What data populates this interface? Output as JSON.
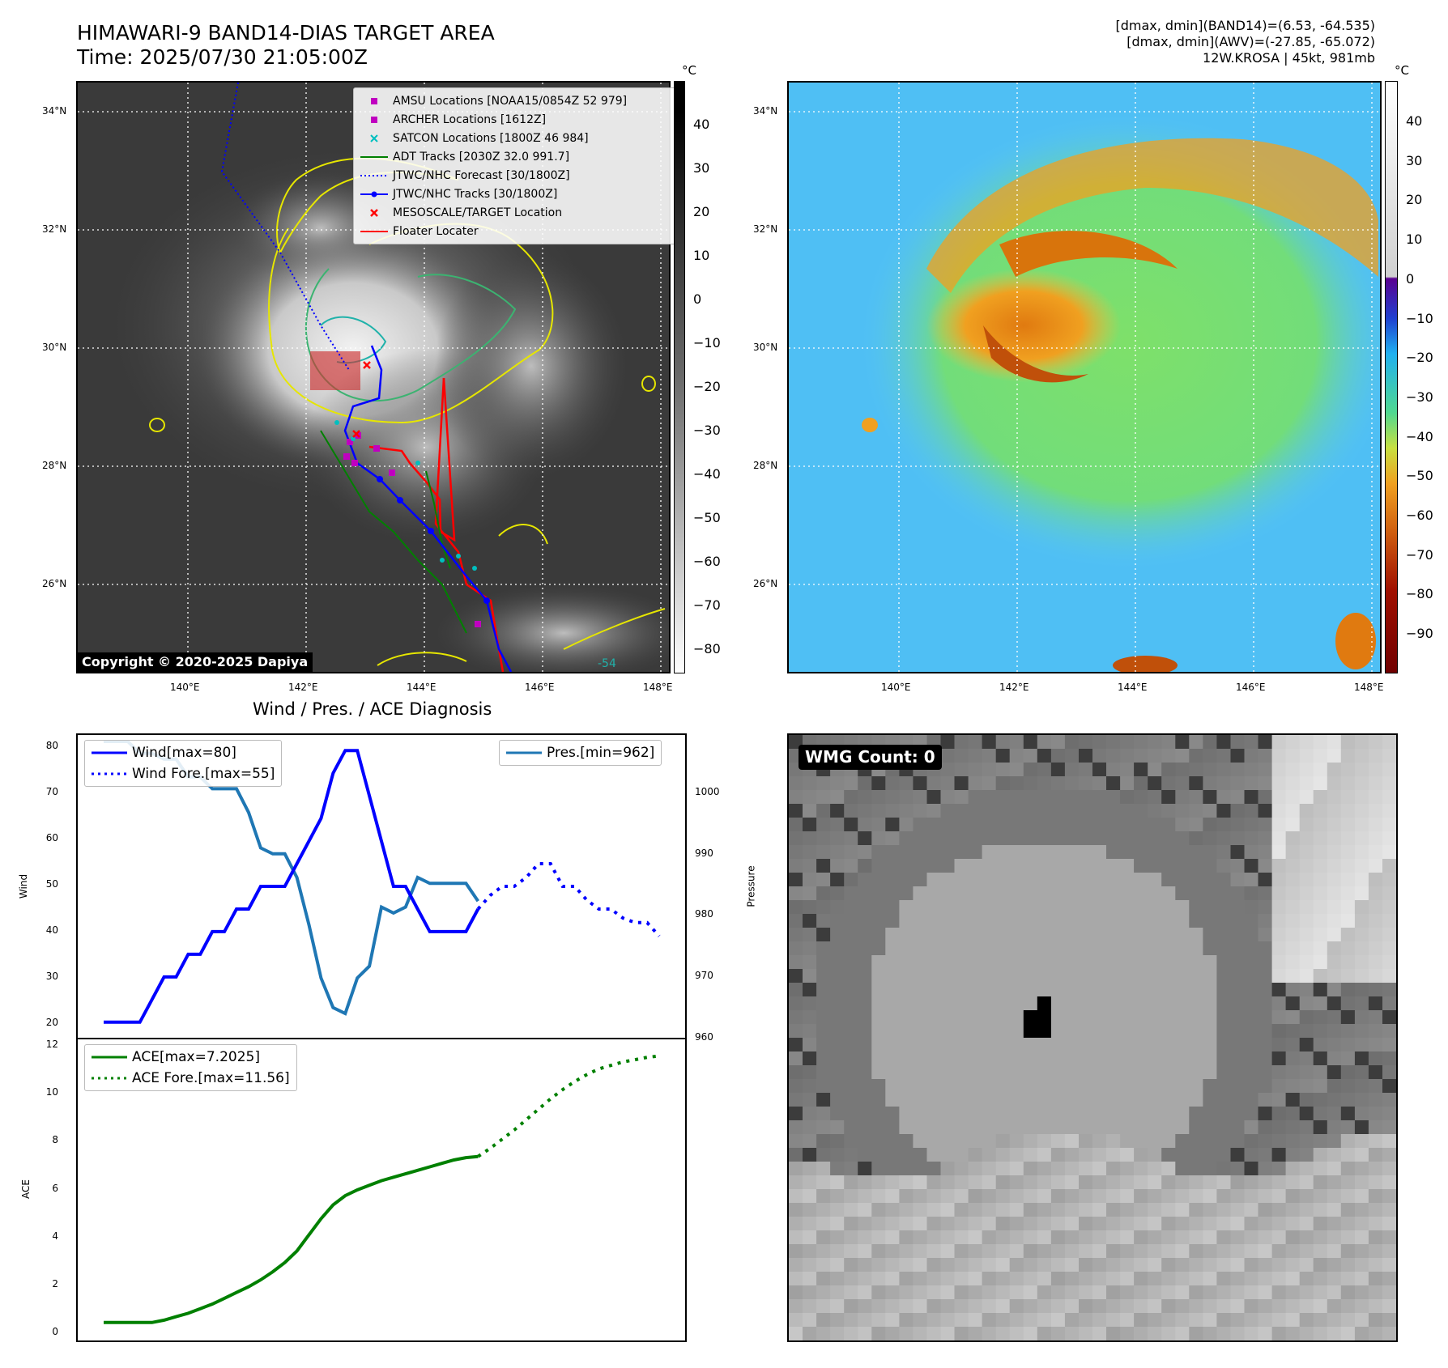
{
  "header": {
    "title_line1": "HIMAWARI-9 BAND14-DIAS TARGET AREA",
    "title_line2": "Time: 2025/07/30 21:05:00Z",
    "info_line1": "[dmax, dmin](BAND14)=(6.53, -64.535)",
    "info_line2": "[dmax, dmin](AWV)=(-27.85, -65.072)",
    "info_line3": "12W.KROSA | 45kt, 981mb"
  },
  "map": {
    "lat_labels": [
      "34°N",
      "32°N",
      "30°N",
      "28°N",
      "26°N"
    ],
    "lon_labels": [
      "140°E",
      "142°E",
      "144°E",
      "146°E",
      "148°E"
    ],
    "copyright": "Copyright © 2020-2025 Dapiya",
    "unit": "°C",
    "gray_cbar_ticks": [
      "40",
      "30",
      "20",
      "10",
      "0",
      "−10",
      "−20",
      "−30",
      "−40",
      "−50",
      "−60",
      "−70",
      "−80"
    ],
    "color_cbar_ticks": [
      "40",
      "30",
      "20",
      "10",
      "0",
      "−10",
      "−20",
      "−30",
      "−40",
      "−50",
      "−60",
      "−70",
      "−80",
      "−90"
    ],
    "legend": [
      {
        "label": "AMSU Locations [NOAA15/0854Z 52 979]",
        "color": "#c000c0",
        "marker": "square"
      },
      {
        "label": "ARCHER Locations [1612Z]",
        "color": "#c000c0",
        "marker": "square"
      },
      {
        "label": "SATCON Locations [1800Z 46 984]",
        "color": "#00bfbf",
        "marker": "x"
      },
      {
        "label": "ADT Tracks [2030Z 32.0 991.7]",
        "color": "#008000",
        "marker": "line"
      },
      {
        "label": "JTWC/NHC Forecast [30/1800Z]",
        "color": "#0000ff",
        "marker": "dotted"
      },
      {
        "label": "JTWC/NHC Tracks [30/1800Z]",
        "color": "#0000ff",
        "marker": "line-dot"
      },
      {
        "label": "MESOSCALE/TARGET Location",
        "color": "#ff0000",
        "marker": "x"
      },
      {
        "label": "Floater Locater",
        "color": "#ff0000",
        "marker": "line"
      }
    ],
    "contour_label": "-54"
  },
  "diagnosis": {
    "title": "Wind / Pres. / ACE Diagnosis",
    "wind_ylabel": "Wind",
    "pres_ylabel": "Pressure",
    "ace_ylabel": "ACE",
    "wind_ticks": [
      "80",
      "70",
      "60",
      "50",
      "40",
      "30",
      "20"
    ],
    "pres_ticks": [
      "1000",
      "990",
      "980",
      "970",
      "960"
    ],
    "ace_ticks": [
      "12",
      "10",
      "8",
      "6",
      "4",
      "2",
      "0"
    ],
    "legend_wind": "Wind[max=80]",
    "legend_wind_fore": "Wind Fore.[max=55]",
    "legend_pres": "Pres.[min=962]",
    "legend_ace": "ACE[max=7.2025]",
    "legend_ace_fore": "ACE Fore.[max=11.56]"
  },
  "wmg": {
    "label": "WMG Count: 0"
  },
  "chart_data": [
    {
      "type": "line",
      "title": "Wind / Pres. / ACE Diagnosis",
      "ylabel": "Wind",
      "ylim": [
        18,
        82
      ],
      "series": [
        {
          "name": "Wind[max=80]",
          "x": [
            0,
            1,
            2,
            3,
            4,
            5,
            6,
            7,
            8,
            9,
            10,
            11,
            12,
            13,
            14,
            15,
            16,
            17,
            18,
            19,
            20,
            21,
            22,
            23,
            24,
            25,
            26,
            27,
            28,
            29,
            30,
            31
          ],
          "values": [
            20,
            20,
            20,
            20,
            25,
            30,
            30,
            35,
            35,
            40,
            40,
            45,
            45,
            50,
            50,
            50,
            55,
            60,
            65,
            75,
            80,
            80,
            70,
            60,
            50,
            50,
            45,
            40,
            40,
            40,
            40,
            45
          ]
        },
        {
          "name": "Wind Fore.[max=55]",
          "x": [
            31,
            32,
            33,
            34,
            35,
            36,
            37,
            38,
            39,
            40,
            41,
            42,
            43,
            44,
            45,
            46
          ],
          "values": [
            45,
            48,
            50,
            50,
            52,
            55,
            55,
            50,
            50,
            47,
            45,
            45,
            43,
            42,
            42,
            39
          ]
        }
      ],
      "color": "#0000ff"
    },
    {
      "type": "line",
      "ylabel": "Pressure",
      "ylim": [
        959,
        1008
      ],
      "series": [
        {
          "name": "Pres.[min=962]",
          "x": [
            0,
            1,
            2,
            3,
            4,
            5,
            6,
            7,
            8,
            9,
            10,
            11,
            12,
            13,
            14,
            15,
            16,
            17,
            18,
            19,
            20,
            21,
            22,
            23,
            24,
            25,
            26,
            27,
            28,
            29,
            30,
            31
          ],
          "values": [
            1008,
            1008,
            1008,
            1006,
            1006,
            1005,
            1005,
            1002,
            1002,
            1000,
            1000,
            1000,
            996,
            990,
            989,
            989,
            985,
            977,
            968,
            963,
            962,
            968,
            970,
            980,
            979,
            980,
            985,
            984,
            984,
            984,
            984,
            981
          ]
        }
      ],
      "color": "#1f77b4"
    },
    {
      "type": "line",
      "ylabel": "ACE",
      "ylim": [
        -0.5,
        12
      ],
      "series": [
        {
          "name": "ACE[max=7.2025]",
          "x": [
            0,
            1,
            2,
            3,
            4,
            5,
            6,
            7,
            8,
            9,
            10,
            11,
            12,
            13,
            14,
            15,
            16,
            17,
            18,
            19,
            20,
            21,
            22,
            23,
            24,
            25,
            26,
            27,
            28,
            29,
            30,
            31
          ],
          "values": [
            0,
            0,
            0,
            0,
            0,
            0.1,
            0.25,
            0.4,
            0.6,
            0.8,
            1.05,
            1.3,
            1.55,
            1.85,
            2.2,
            2.6,
            3.1,
            3.8,
            4.5,
            5.1,
            5.5,
            5.75,
            5.95,
            6.15,
            6.3,
            6.45,
            6.6,
            6.75,
            6.9,
            7.05,
            7.15,
            7.2
          ]
        },
        {
          "name": "ACE Fore.[max=11.56]",
          "x": [
            31,
            32,
            33,
            34,
            35,
            36,
            37,
            38,
            39,
            40,
            41,
            42,
            43,
            44,
            45,
            46
          ],
          "values": [
            7.2,
            7.55,
            7.95,
            8.35,
            8.8,
            9.25,
            9.7,
            10.1,
            10.45,
            10.75,
            11.0,
            11.15,
            11.3,
            11.4,
            11.5,
            11.56
          ]
        }
      ],
      "color": "#008000"
    }
  ]
}
